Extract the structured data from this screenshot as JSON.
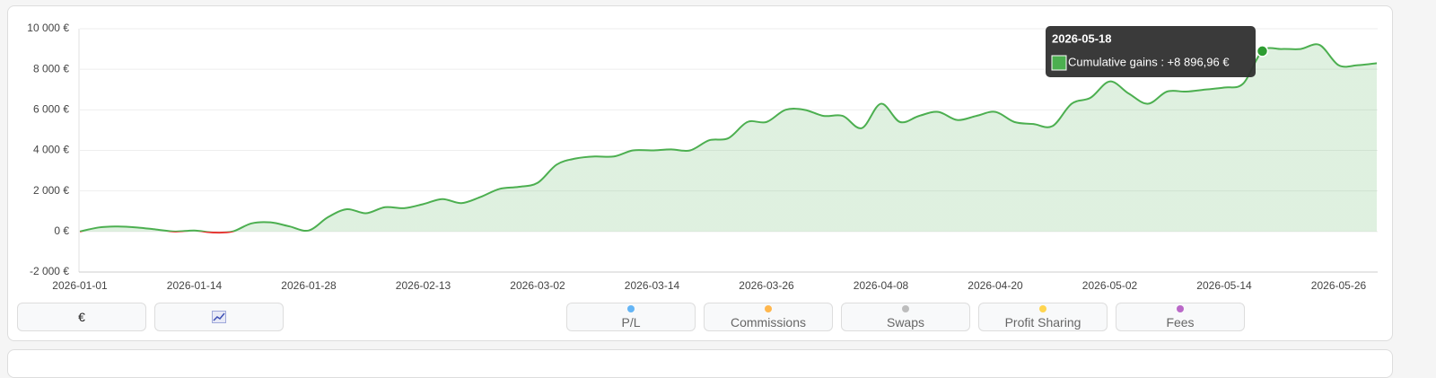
{
  "chart_data": {
    "type": "area",
    "categories": [
      "2026-01-01",
      null,
      null,
      null,
      null,
      null,
      "2026-01-14",
      null,
      null,
      null,
      null,
      null,
      "2026-01-28",
      null,
      null,
      null,
      null,
      null,
      "2026-02-13",
      null,
      null,
      null,
      null,
      null,
      "2026-03-02",
      null,
      null,
      null,
      null,
      null,
      "2026-03-14",
      null,
      null,
      null,
      null,
      null,
      "2026-03-26",
      null,
      null,
      null,
      null,
      null,
      "2026-04-08",
      null,
      null,
      null,
      null,
      null,
      "2026-04-20",
      null,
      null,
      null,
      null,
      null,
      "2026-05-02",
      null,
      null,
      null,
      null,
      null,
      "2026-05-14",
      null,
      null,
      null,
      null,
      null,
      "2026-05-26",
      null,
      null
    ],
    "values": [
      0,
      200,
      250,
      200,
      100,
      0,
      50,
      -50,
      0,
      400,
      450,
      250,
      50,
      700,
      1100,
      900,
      1200,
      1150,
      1350,
      1600,
      1400,
      1700,
      2100,
      2200,
      2400,
      3300,
      3600,
      3700,
      3700,
      4000,
      4000,
      4050,
      4000,
      4500,
      4600,
      5400,
      5400,
      6000,
      6000,
      5700,
      5700,
      5100,
      6300,
      5400,
      5700,
      5900,
      5500,
      5700,
      5900,
      5400,
      5300,
      5200,
      6300,
      6600,
      7400,
      6800,
      6300,
      6900,
      6900,
      7000,
      7100,
      7300,
      8896.96,
      9000,
      9000,
      9200,
      8200,
      8200,
      8300
    ],
    "color": "#4caf50",
    "negative_color": "#e53935",
    "ylim": [
      -2000,
      10000
    ],
    "yticks": [
      {
        "value": -2000,
        "label": "-2 000 €"
      },
      {
        "value": 0,
        "label": "0 €"
      },
      {
        "value": 2000,
        "label": "2 000 €"
      },
      {
        "value": 4000,
        "label": "4 000 €"
      },
      {
        "value": 6000,
        "label": "6 000 €"
      },
      {
        "value": 8000,
        "label": "8 000 €"
      },
      {
        "value": 10000,
        "label": "10 000 €"
      }
    ],
    "grid": true,
    "tooltip": {
      "title": "2026-05-18",
      "text": "Cumulative gains : +8 896,96 €"
    }
  },
  "controls": {
    "unit": "€",
    "toggles": [
      {
        "name": "P/L",
        "color": "#64b5f6"
      },
      {
        "name": "Commissions",
        "color": "#ffb74d"
      },
      {
        "name": "Swaps",
        "color": "#bdbdbd"
      },
      {
        "name": "Profit Sharing",
        "color": "#ffd54f"
      },
      {
        "name": "Fees",
        "color": "#ba68c8"
      }
    ]
  }
}
